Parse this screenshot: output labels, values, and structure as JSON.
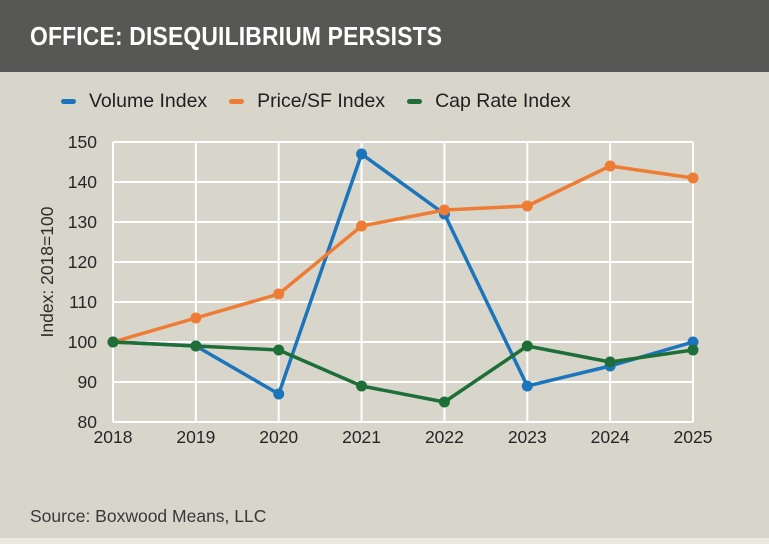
{
  "header": {
    "title": "OFFICE: DISEQUILIBRIUM PERSISTS"
  },
  "chart_data": {
    "type": "line",
    "title": "OFFICE: DISEQUILIBRIUM PERSISTS",
    "categories": [
      "2018",
      "2019",
      "2020",
      "2021",
      "2022",
      "2023",
      "2024",
      "2025"
    ],
    "series": [
      {
        "name": "Volume Index",
        "color": "#1c75bc",
        "values": [
          100,
          99,
          87,
          147,
          132,
          89,
          94,
          100
        ]
      },
      {
        "name": "Price/SF Index",
        "color": "#ee7c34",
        "values": [
          100,
          106,
          112,
          129,
          133,
          134,
          144,
          141
        ]
      },
      {
        "name": "Cap Rate Index",
        "color": "#1e6e38",
        "values": [
          100,
          99,
          98,
          89,
          85,
          99,
          95,
          98
        ]
      }
    ],
    "xlabel": "",
    "ylabel": "Index: 2018=100",
    "ylim": [
      80,
      150
    ],
    "y_ticks": [
      150,
      140,
      130,
      120,
      110,
      100,
      90,
      80
    ],
    "grid": true,
    "gridline_color": "#ffffff",
    "legend_position": "top-left"
  },
  "footer": {
    "source": "Source: Boxwood Means, LLC"
  },
  "theme": {
    "background": "#d8d6cb",
    "title_bar": "#575755",
    "title_text": "#ffffff",
    "text": "#262626"
  }
}
